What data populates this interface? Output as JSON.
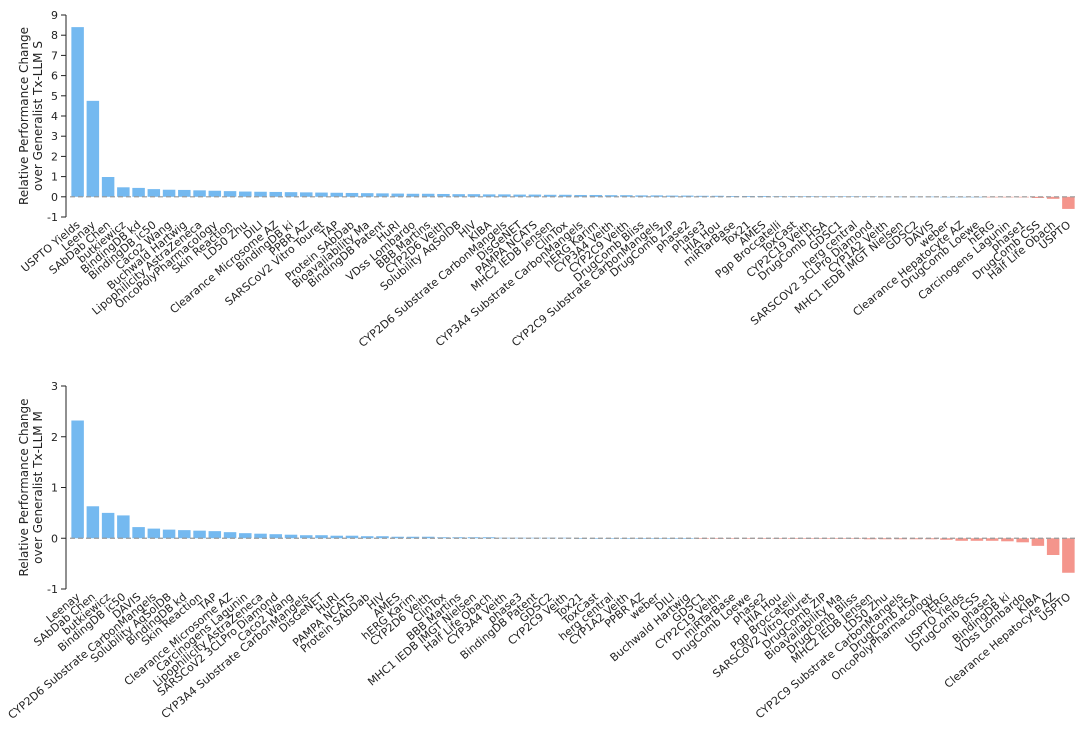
{
  "chart_data": [
    {
      "type": "bar",
      "ylabel": [
        "Relative Performance Change",
        "over Generalist Tx-LLM S"
      ],
      "ylim": [
        -1,
        9
      ],
      "yticks": [
        -1,
        0,
        1,
        2,
        3,
        4,
        5,
        6,
        7,
        8,
        9
      ],
      "reference_line": 0,
      "grid": false,
      "colors": {
        "positive": "#74b9f0",
        "negative": "#f4958c",
        "refline": "#999999"
      },
      "categories": [
        "USPTO Yields",
        "Leenay",
        "SAbDab Chen",
        "butkiewicz",
        "BindingDB kd",
        "BindingDB ic50",
        "Caco2 Wang",
        "Buchwald Hartwig",
        "Lipophilicity AstraZeneca",
        "OncoPolyPharmacology",
        "Skin Reaction",
        "LD50 Zhu",
        "DILI",
        "Clearance Microsome AZ",
        "BindingDB ki",
        "PPBR AZ",
        "SARSCoV2 Vitro Touret",
        "TAP",
        "Protein SAbDab",
        "Bioavailability Ma",
        "BindingDB Patent",
        "HuRI",
        "VDss Lombardo",
        "BBB Martins",
        "CYP2D6 Veith",
        "Solubility AqSolDB",
        "HIV",
        "KIBA",
        "CYP2D6 Substrate CarbonMangels",
        "DisGeNET",
        "PAMPA NCATS",
        "MHC2 IEDB Jensen",
        "ClinTox",
        "CYP3A4 Substrate CarbonMangels",
        "hERG Karim",
        "CYP3A4 Veith",
        "CYP2C9 Veith",
        "DrugComb Bliss",
        "CYP2C9 Substrate CarbonMangels",
        "DrugComb ZIP",
        "phase2",
        "phase3",
        "HIA Hou",
        "miRTarBase",
        "Tox21",
        "AMES",
        "Pgp Broccatelli",
        "ToxCast",
        "CYP2C19 Veith",
        "DrugComb HSA",
        "GDSC1",
        "herg central",
        "SARSCOV2 3CLPro Diamond",
        "CYP1A2 Veith",
        "MHC1 IEDB IMGT Nielsen",
        "GDSC2",
        "DAVIS",
        "weber",
        "Clearance Hepatocyte AZ",
        "DrugComb Loewe",
        "hERG",
        "Carcinogens Lagunin",
        "phase1",
        "DrugComb CSS",
        "Half Life Obach",
        "USPTO"
      ],
      "values": [
        8.4,
        4.75,
        0.98,
        0.47,
        0.44,
        0.38,
        0.35,
        0.34,
        0.32,
        0.3,
        0.28,
        0.26,
        0.25,
        0.24,
        0.23,
        0.22,
        0.21,
        0.2,
        0.19,
        0.18,
        0.17,
        0.16,
        0.15,
        0.15,
        0.14,
        0.13,
        0.13,
        0.12,
        0.12,
        0.11,
        0.11,
        0.1,
        0.1,
        0.09,
        0.09,
        0.08,
        0.08,
        0.07,
        0.07,
        0.06,
        0.06,
        0.05,
        0.05,
        0.04,
        0.04,
        0.04,
        0.03,
        0.03,
        0.03,
        0.02,
        0.02,
        0.02,
        0.02,
        0.01,
        0.01,
        0.01,
        0.01,
        0.0,
        0.0,
        0.0,
        -0.01,
        -0.02,
        -0.03,
        -0.06,
        -0.1,
        -0.6
      ]
    },
    {
      "type": "bar",
      "ylabel": [
        "Relative Performance Change",
        "over Generalist Tx-LLM M"
      ],
      "ylim": [
        -1,
        3
      ],
      "yticks": [
        -1,
        0,
        1,
        2,
        3
      ],
      "reference_line": 0,
      "grid": false,
      "colors": {
        "positive": "#74b9f0",
        "negative": "#f4958c",
        "refline": "#999999"
      },
      "categories": [
        "Leenay",
        "SAbDab Chen",
        "butkiewicz",
        "BindingDB ic50",
        "DAVIS",
        "CYP2D6 Substrate CarbonMangels",
        "Solubility AqSolDB",
        "BindingDB kd",
        "Skin Reaction",
        "TAP",
        "Clearance Microsome AZ",
        "Carcinogens Lagunin",
        "Lipophilicity AstraZeneca",
        "SARSCoV2 3CLPro Diamond",
        "Caco2 Wang",
        "CYP3A4 Substrate CarbonMangels",
        "DisGeNET",
        "HuRI",
        "PAMPA NCATS",
        "Protein SAbDab",
        "HIV",
        "AMES",
        "hERG Karim",
        "CYP2D6 Veith",
        "ClinTox",
        "BBB Martins",
        "MHC1 IEDB IMGT Nielsen",
        "Half Life Obach",
        "CYP3A4 Veith",
        "phase3",
        "BindingDB Patent",
        "GDSC2",
        "CYP2C9 Veith",
        "Tox21",
        "ToxCast",
        "herg central",
        "CYP1A2 Veith",
        "PPBR AZ",
        "weber",
        "DILI",
        "Buchwald Hartwig",
        "GDSC1",
        "CYP2C19 Veith",
        "miRTarBase",
        "DrugComb Loewe",
        "phase2",
        "HIA Hou",
        "Pgp Broccatelli",
        "SARSCoV2 Vitro Touret",
        "DrugComb ZIP",
        "Bioavailability Ma",
        "DrugComb Bliss",
        "MHC2 IEDB Jensen",
        "LD50 Zhu",
        "CYP2C9 Substrate CarbonMangels",
        "DrugComb HSA",
        "OncoPolyPharmacology",
        "hERG",
        "USPTO Yields",
        "DrugComb CSS",
        "phase1",
        "BindingDB ki",
        "VDss Lombardo",
        "KIBA",
        "Clearance Hepatocyte AZ",
        "USPTO"
      ],
      "values": [
        2.32,
        0.63,
        0.5,
        0.45,
        0.22,
        0.19,
        0.17,
        0.16,
        0.15,
        0.14,
        0.12,
        0.1,
        0.09,
        0.08,
        0.07,
        0.06,
        0.06,
        0.05,
        0.05,
        0.04,
        0.04,
        0.03,
        0.03,
        0.03,
        0.02,
        0.02,
        0.02,
        0.02,
        0.01,
        0.01,
        0.01,
        0.01,
        0.01,
        0.0,
        0.0,
        0.0,
        0.0,
        0.0,
        0.0,
        0.0,
        0.0,
        -0.01,
        -0.01,
        -0.01,
        -0.01,
        -0.01,
        -0.01,
        -0.01,
        -0.01,
        -0.01,
        -0.01,
        -0.01,
        -0.02,
        -0.02,
        -0.02,
        -0.02,
        -0.02,
        -0.03,
        -0.05,
        -0.05,
        -0.05,
        -0.06,
        -0.08,
        -0.15,
        -0.33,
        -0.68
      ]
    }
  ]
}
